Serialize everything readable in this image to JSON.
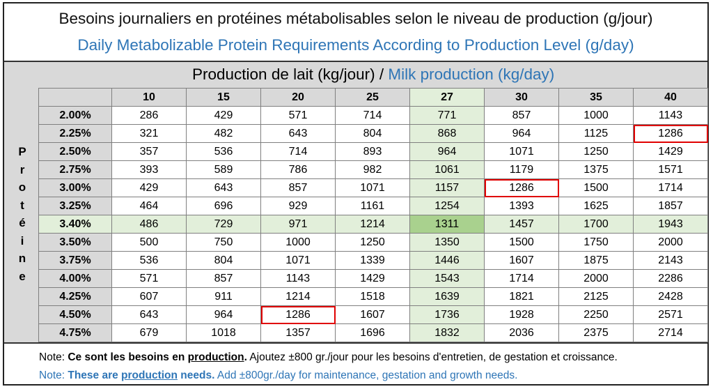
{
  "title": {
    "fr": "Besoins journaliers en protéines métabolisables selon le niveau de production (g/jour)",
    "en": "Daily Metabolizable Protein Requirements According to Production Level (g/day)"
  },
  "production_label": {
    "fr": "Production de lait (kg/jour)",
    "separator": " / ",
    "en": "Milk production (kg/day)"
  },
  "row_axis_label": [
    "P",
    "r",
    "o",
    "t",
    "é",
    "i",
    "n",
    "e"
  ],
  "table": {
    "columns": [
      "10",
      "15",
      "20",
      "25",
      "27",
      "30",
      "35",
      "40"
    ],
    "highlight_column": "27",
    "highlight_row": "3.40%",
    "rows": [
      {
        "protein": "2.00%",
        "values": [
          "286",
          "429",
          "571",
          "714",
          "771",
          "857",
          "1000",
          "1143"
        ]
      },
      {
        "protein": "2.25%",
        "values": [
          "321",
          "482",
          "643",
          "804",
          "868",
          "964",
          "1125",
          "1286"
        ]
      },
      {
        "protein": "2.50%",
        "values": [
          "357",
          "536",
          "714",
          "893",
          "964",
          "1071",
          "1250",
          "1429"
        ]
      },
      {
        "protein": "2.75%",
        "values": [
          "393",
          "589",
          "786",
          "982",
          "1061",
          "1179",
          "1375",
          "1571"
        ]
      },
      {
        "protein": "3.00%",
        "values": [
          "429",
          "643",
          "857",
          "1071",
          "1157",
          "1286",
          "1500",
          "1714"
        ]
      },
      {
        "protein": "3.25%",
        "values": [
          "464",
          "696",
          "929",
          "1161",
          "1254",
          "1393",
          "1625",
          "1857"
        ]
      },
      {
        "protein": "3.40%",
        "values": [
          "486",
          "729",
          "971",
          "1214",
          "1311",
          "1457",
          "1700",
          "1943"
        ]
      },
      {
        "protein": "3.50%",
        "values": [
          "500",
          "750",
          "1000",
          "1250",
          "1350",
          "1500",
          "1750",
          "2000"
        ]
      },
      {
        "protein": "3.75%",
        "values": [
          "536",
          "804",
          "1071",
          "1339",
          "1446",
          "1607",
          "1875",
          "2143"
        ]
      },
      {
        "protein": "4.00%",
        "values": [
          "571",
          "857",
          "1143",
          "1429",
          "1543",
          "1714",
          "2000",
          "2286"
        ]
      },
      {
        "protein": "4.25%",
        "values": [
          "607",
          "911",
          "1214",
          "1518",
          "1639",
          "1821",
          "2125",
          "2428"
        ]
      },
      {
        "protein": "4.50%",
        "values": [
          "643",
          "964",
          "1286",
          "1607",
          "1736",
          "1928",
          "2250",
          "2571"
        ]
      },
      {
        "protein": "4.75%",
        "values": [
          "679",
          "1018",
          "1357",
          "1696",
          "1832",
          "2036",
          "2375",
          "2714"
        ]
      }
    ],
    "boxed_cells": [
      {
        "protein": "2.25%",
        "column": "40"
      },
      {
        "protein": "3.00%",
        "column": "30"
      },
      {
        "protein": "4.50%",
        "column": "20"
      }
    ]
  },
  "notes": {
    "fr": {
      "prefix": "Note: ",
      "bold_start": "Ce sont les besoins en ",
      "bold_underline": "production",
      "bold_end": ".",
      "rest": "  Ajoutez ±800 gr./jour pour les besoins d'entretien, de gestation et croissance."
    },
    "en": {
      "prefix": "Note: ",
      "bold_start": "These are ",
      "bold_underline": "production",
      "bold_end": " needs.",
      "rest": " Add ±800gr./day for maintenance, gestation and growth needs."
    }
  },
  "colors": {
    "english_text": "#2e75b6",
    "header_gray": "#d9d9d9",
    "highlight_green": "#e2efda",
    "intersection_green": "#a9d18e",
    "box_red": "#e00000"
  }
}
